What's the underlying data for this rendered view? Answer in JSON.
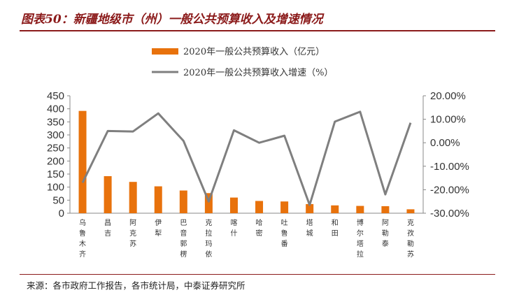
{
  "header": {
    "title": "图表50：新疆地级市（州）一般公共预算收入及增速情况"
  },
  "footer": {
    "source": "来源：各市政府工作报告，各市统计局，中泰证券研究所"
  },
  "chart_data": {
    "type": "bar",
    "colors": {
      "bar": "#e8720c",
      "line": "#7f7f7f",
      "accent": "#8b1a1a"
    },
    "legend_position": "top",
    "grid": false,
    "categories": [
      "乌鲁木齐",
      "昌吉",
      "阿克苏",
      "伊犁",
      "巴音郭楞",
      "克拉玛依",
      "喀什",
      "哈密",
      "吐鲁番",
      "塔城",
      "和田",
      "博尔塔拉",
      "阿勒泰",
      "克孜勒苏"
    ],
    "series": [
      {
        "name": "2020年一般公共预算收入（亿元）",
        "type": "bar",
        "axis": "left",
        "values": [
          392,
          142,
          120,
          103,
          87,
          77,
          60,
          47,
          45,
          35,
          30,
          28,
          27,
          15
        ]
      },
      {
        "name": "2020年一般公共预算收入增速（%）",
        "type": "line",
        "axis": "right",
        "values": [
          -17,
          5,
          4.8,
          12.5,
          0.8,
          -25,
          5.3,
          0,
          3,
          -26.5,
          9,
          13.2,
          -22,
          8.5
        ]
      }
    ],
    "ylim_left": [
      0,
      450
    ],
    "yticks_left": [
      "0",
      "50",
      "100",
      "150",
      "200",
      "250",
      "300",
      "350",
      "400",
      "450"
    ],
    "ylim_right": [
      -30,
      20
    ],
    "yticks_right": [
      "-30.00%",
      "-20.00%",
      "-10.00%",
      "0.00%",
      "10.00%",
      "20.00%"
    ]
  }
}
